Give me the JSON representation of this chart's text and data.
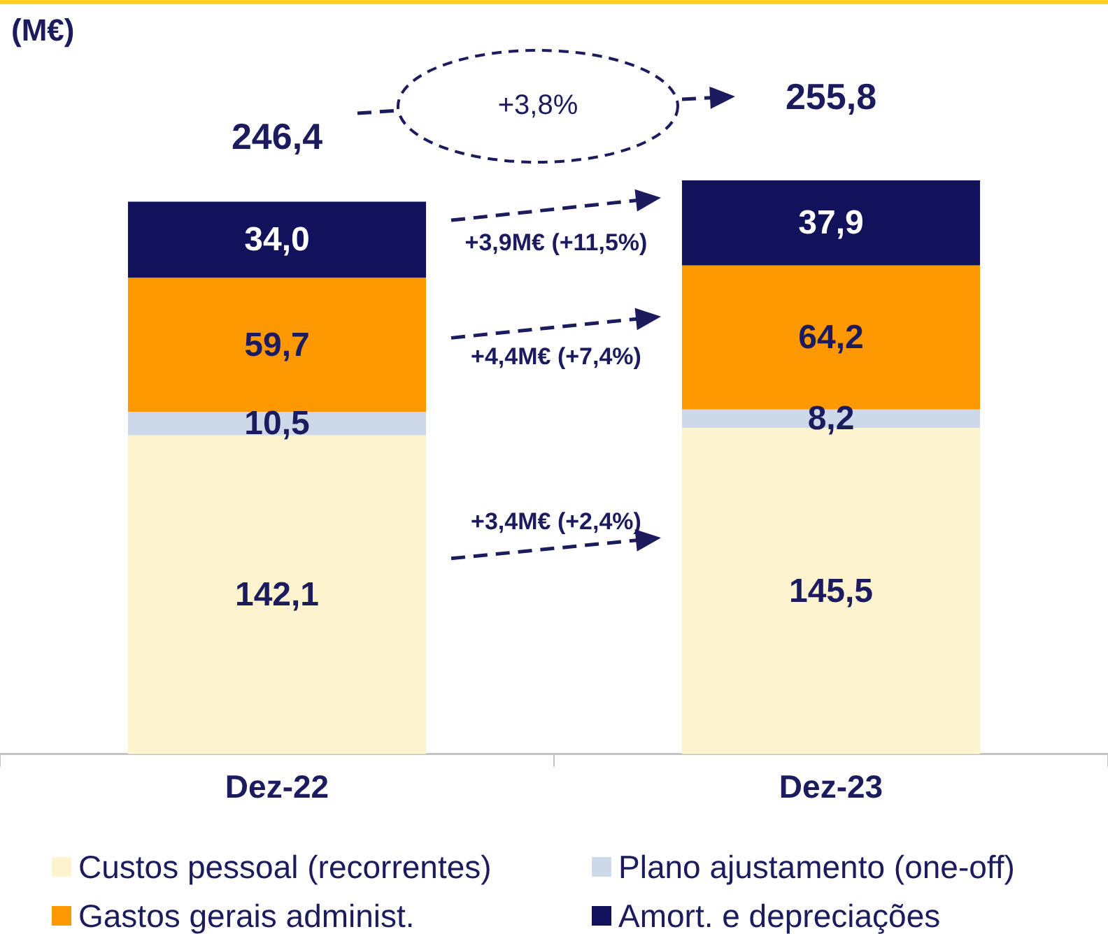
{
  "chart_data": {
    "type": "bar",
    "stacked": true,
    "ylabel": "(M€)",
    "categories": [
      "Dez-22",
      "Dez-23"
    ],
    "series": [
      {
        "name": "Custos pessoal (recorrentes)",
        "color": "#fdf4cf",
        "values": [
          142.1,
          145.5
        ],
        "value_labels": [
          "142,1",
          "145,5"
        ]
      },
      {
        "name": "Plano ajustamento (one-off)",
        "color": "#cdd8e8",
        "values": [
          10.5,
          8.2
        ],
        "value_labels": [
          "10,5",
          "8,2"
        ]
      },
      {
        "name": "Gastos gerais administ.",
        "color": "#fe9800",
        "values": [
          59.7,
          64.2
        ],
        "value_labels": [
          "59,7",
          "64,2"
        ]
      },
      {
        "name": "Amort. e depreciações",
        "color": "#12125c",
        "values": [
          34.0,
          37.9
        ],
        "value_labels": [
          "34,0",
          "37,9"
        ]
      }
    ],
    "totals": [
      "246,4",
      "255,8"
    ],
    "annotations": [
      "+3,8%",
      "+3,9M€ (+11,5%)",
      "+4,4M€ (+7,4%)",
      "+3,4M€ (+2,4%)"
    ],
    "legend": "bottom",
    "grid": false
  }
}
